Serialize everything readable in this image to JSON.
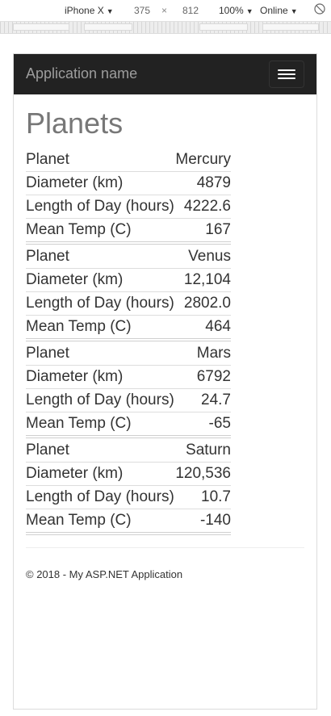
{
  "devtools": {
    "device": "iPhone X",
    "width": "375",
    "times": "×",
    "height": "812",
    "zoom": "100%",
    "network": "Online"
  },
  "app": {
    "brand": "Application name"
  },
  "page": {
    "title": "Planets"
  },
  "labels": {
    "planet": "Planet",
    "diameter": "Diameter (km)",
    "day": "Length of Day (hours)",
    "temp": "Mean Temp (C)"
  },
  "planets": [
    {
      "name": "Mercury",
      "diameter": "4879",
      "day": "4222.6",
      "temp": "167"
    },
    {
      "name": "Venus",
      "diameter": "12,104",
      "day": "2802.0",
      "temp": "464"
    },
    {
      "name": "Mars",
      "diameter": "6792",
      "day": "24.7",
      "temp": "-65"
    },
    {
      "name": "Saturn",
      "diameter": "120,536",
      "day": "10.7",
      "temp": "-140"
    }
  ],
  "footer": {
    "text": "© 2018 - My ASP.NET Application"
  }
}
